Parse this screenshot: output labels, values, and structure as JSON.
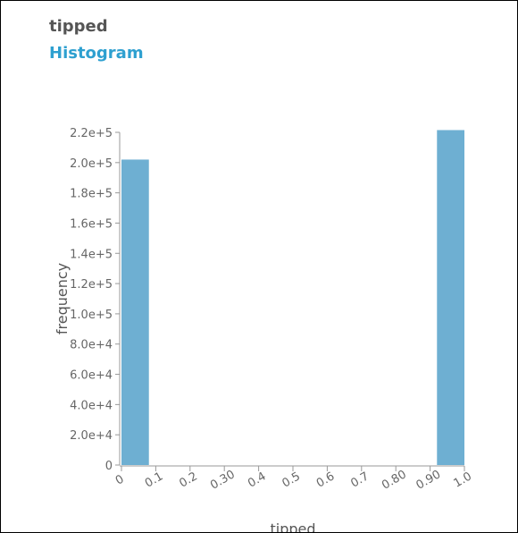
{
  "header": {
    "title": "tipped",
    "subtitle": "Histogram"
  },
  "colors": {
    "bar": "#6eafd2",
    "axis": "#999999",
    "title": "#555555",
    "subtitle": "#2ea0d0"
  },
  "chart_data": {
    "type": "bar",
    "title": "tipped",
    "subtitle": "Histogram",
    "xlabel": "tipped",
    "ylabel": "frequency",
    "xlim": [
      0,
      1.0
    ],
    "ylim": [
      0,
      220000
    ],
    "grid": false,
    "legend": "none",
    "x_tick_labels": [
      "0",
      "0.1",
      "0.2",
      "0.30",
      "0.4",
      "0.5",
      "0.6",
      "0.7",
      "0.80",
      "0.90",
      "1.0"
    ],
    "x_ticks": [
      0,
      0.1,
      0.2,
      0.3,
      0.4,
      0.5,
      0.6,
      0.7,
      0.8,
      0.9,
      1.0
    ],
    "y_tick_labels": [
      "0",
      "2.0e+4",
      "4.0e+4",
      "6.0e+4",
      "8.0e+4",
      "1.0e+5",
      "1.2e+5",
      "1.4e+5",
      "1.6e+5",
      "1.8e+5",
      "2.0e+5",
      "2.2e+5"
    ],
    "y_ticks": [
      0,
      20000,
      40000,
      60000,
      80000,
      100000,
      120000,
      140000,
      160000,
      180000,
      200000,
      220000
    ],
    "bins": [
      {
        "x0": 0.0,
        "x1": 0.08,
        "value": 202000
      },
      {
        "x0": 0.92,
        "x1": 1.0,
        "value": 221500
      }
    ]
  }
}
